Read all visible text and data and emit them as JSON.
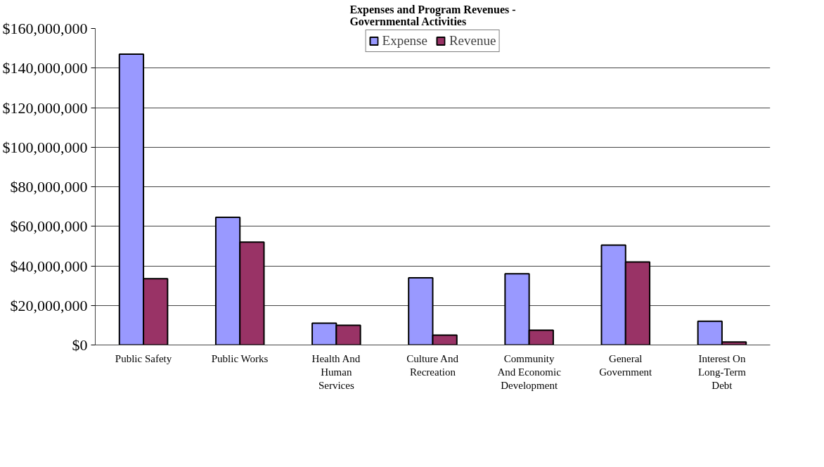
{
  "chart_data": {
    "type": "bar",
    "title": "Expenses and Program Revenues -\nGovernmental Activities",
    "categories": [
      "Public Safety",
      "Public Works",
      "Health And Human Services",
      "Culture And Recreation",
      "Community And Economic Development",
      "General Government",
      "Interest On Long-Term Debt"
    ],
    "series": [
      {
        "name": "Expense",
        "color": "#9999ff",
        "values": [
          147000000,
          64500000,
          11000000,
          34000000,
          36000000,
          50500000,
          12000000
        ]
      },
      {
        "name": "Revenue",
        "color": "#993366",
        "values": [
          33500000,
          52000000,
          10000000,
          5000000,
          7500000,
          42000000,
          1500000
        ]
      }
    ],
    "ylim": [
      0,
      160000000
    ],
    "yticks": [
      {
        "value": 0,
        "label": "$0"
      },
      {
        "value": 20000000,
        "label": "$20,000,000"
      },
      {
        "value": 40000000,
        "label": "$40,000,000"
      },
      {
        "value": 60000000,
        "label": "$60,000,000"
      },
      {
        "value": 80000000,
        "label": "$80,000,000"
      },
      {
        "value": 100000000,
        "label": "$100,000,000"
      },
      {
        "value": 120000000,
        "label": "$120,000,000"
      },
      {
        "value": 140000000,
        "label": "$140,000,000"
      },
      {
        "value": 160000000,
        "label": "$160,000,000"
      }
    ],
    "grid": "y",
    "legend": "top"
  }
}
